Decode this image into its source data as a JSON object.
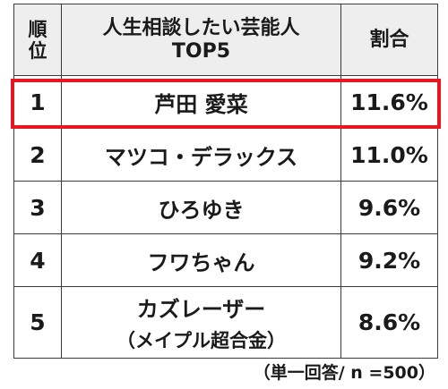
{
  "chart_data": {
    "type": "table",
    "columns": [
      "順位",
      "人生相談したい芸能人 TOP5",
      "割合"
    ],
    "header": {
      "rank": "順\n位",
      "name_line1": "人生相談したい芸能人",
      "name_line2": "TOP5",
      "share": "割合"
    },
    "rows": [
      {
        "rank": "1",
        "name": "芦田 愛菜",
        "sub": "",
        "share": "11.6%"
      },
      {
        "rank": "2",
        "name": "マツコ・デラックス",
        "sub": "",
        "share": "11.0%"
      },
      {
        "rank": "3",
        "name": "ひろゆき",
        "sub": "",
        "share": "9.6%"
      },
      {
        "rank": "4",
        "name": "フワちゃん",
        "sub": "",
        "share": "9.2%"
      },
      {
        "rank": "5",
        "name": "カズレーザー",
        "sub": "（メイプル超合金）",
        "share": "8.6%"
      }
    ],
    "values": [
      11.6,
      11.0,
      9.6,
      9.2,
      8.6
    ],
    "unit": "%",
    "highlight_row": 1,
    "highlight_color": "#e8161e",
    "header_bg": "#eeeeee",
    "footnote": "（単一回答/ n =500）"
  }
}
